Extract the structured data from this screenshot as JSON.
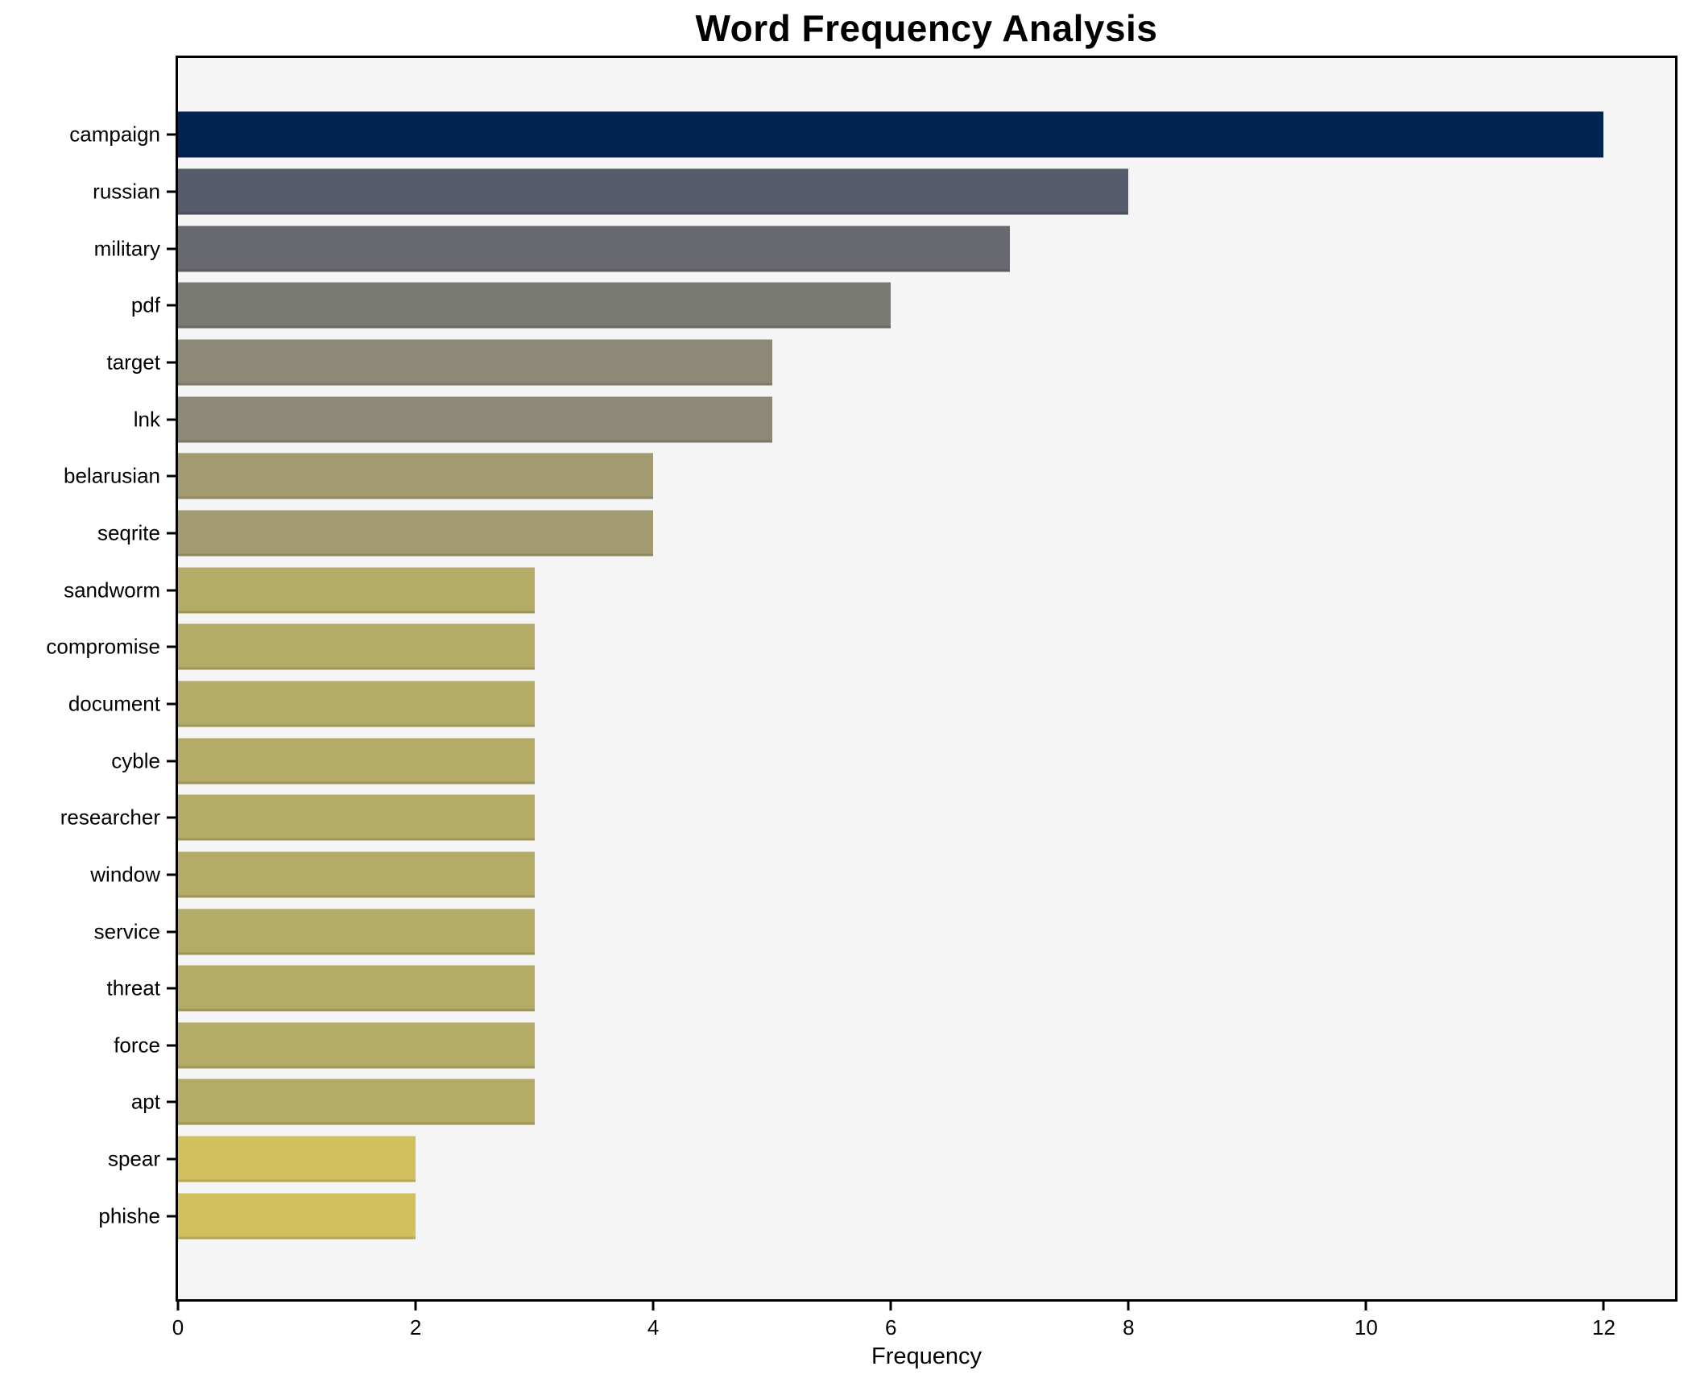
{
  "chart_data": {
    "type": "bar",
    "orientation": "horizontal",
    "title": "Word Frequency Analysis",
    "xlabel": "Frequency",
    "ylabel": "",
    "categories": [
      "campaign",
      "russian",
      "military",
      "pdf",
      "target",
      "lnk",
      "belarusian",
      "seqrite",
      "sandworm",
      "compromise",
      "document",
      "cyble",
      "researcher",
      "window",
      "service",
      "threat",
      "force",
      "apt",
      "spear",
      "phishe"
    ],
    "values": [
      12,
      8,
      7,
      6,
      5,
      5,
      4,
      4,
      3,
      3,
      3,
      3,
      3,
      3,
      3,
      3,
      3,
      3,
      2,
      2
    ],
    "bar_colors": [
      "#022452",
      "#565c6c",
      "#68696f",
      "#7a7a74",
      "#8e8977",
      "#8e8977",
      "#a29b71",
      "#a29b71",
      "#b4ab66",
      "#b4ab66",
      "#b4ab66",
      "#b4ab66",
      "#b4ab66",
      "#b4ab66",
      "#b4ab66",
      "#b4ab66",
      "#b4ab66",
      "#b4ab66",
      "#d2bf5e",
      "#d2bf5e"
    ],
    "xlim": [
      0,
      12.6
    ],
    "xticks": [
      0,
      2,
      4,
      6,
      8,
      10,
      12
    ],
    "grid": false,
    "legend_position": "none"
  },
  "colors": {
    "figure_background": "#ffffff",
    "plot_background": "#f5f5f6",
    "spine": "#000000",
    "text": "#000000"
  }
}
